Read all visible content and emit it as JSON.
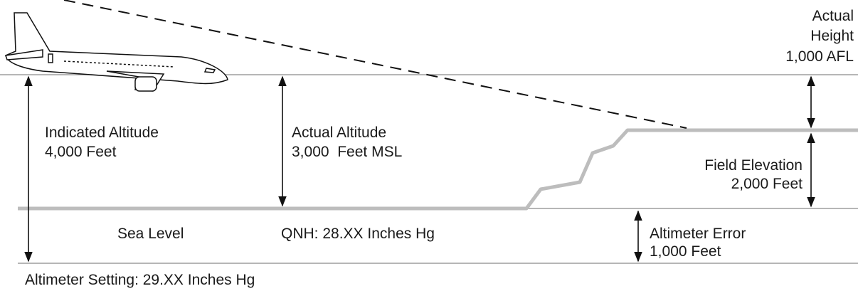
{
  "labels": {
    "actual_height": [
      "Actual",
      "Height",
      "1,000 AFL"
    ],
    "indicated_altitude": [
      "Indicated Altitude",
      "4,000 Feet"
    ],
    "actual_altitude": [
      "Actual Altitude",
      "3,000  Feet MSL"
    ],
    "field_elevation": [
      "Field Elevation",
      "2,000 Feet"
    ],
    "sea_level": "Sea Level",
    "qnh": "QNH: 28.XX Inches Hg",
    "altimeter_error": [
      "Altimeter Error",
      "1,000 Feet"
    ],
    "altimeter_setting": "Altimeter Setting: 29.XX Inches Hg"
  }
}
